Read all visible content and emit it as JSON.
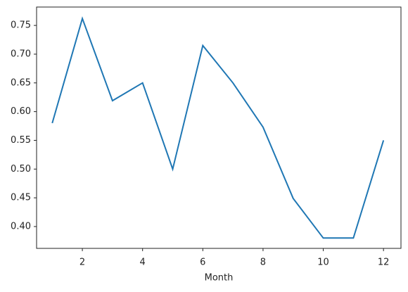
{
  "chart_data": {
    "type": "line",
    "xlabel": "Month",
    "x": [
      1,
      2,
      3,
      4,
      5,
      6,
      7,
      8,
      9,
      10,
      11,
      12
    ],
    "series": [
      {
        "color": "#1f77b4",
        "values": [
          0.58,
          0.762,
          0.619,
          0.65,
          0.5,
          0.715,
          0.65,
          0.573,
          0.449,
          0.38,
          0.38,
          0.55
        ]
      }
    ],
    "xlim": [
      0.48,
      12.58
    ],
    "xticks": [
      2,
      4,
      6,
      8,
      10,
      12
    ],
    "ylim": [
      0.362,
      0.782
    ],
    "yticks": [
      {
        "value": 0.4,
        "label": "0.40"
      },
      0.45,
      {
        "value": 0.5,
        "label": "0.50"
      },
      0.55,
      {
        "value": 0.6,
        "label": "0.60"
      },
      0.65,
      {
        "value": 0.7,
        "label": "0.70"
      },
      0.75
    ]
  }
}
